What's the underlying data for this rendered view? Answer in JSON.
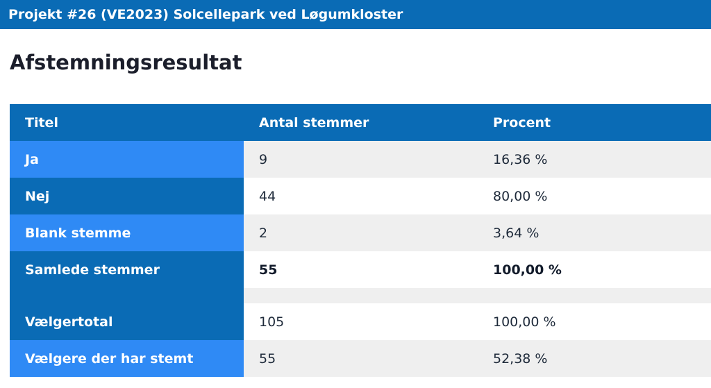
{
  "header": {
    "title": "Projekt #26 (VE2023) Solcellepark ved Løgumkloster"
  },
  "page": {
    "heading": "Afstemningsresultat"
  },
  "table": {
    "columns": [
      "Titel",
      "Antal stemmer",
      "Procent"
    ],
    "rows": [
      {
        "title": "Ja",
        "votes": "9",
        "percent": "16,36 %"
      },
      {
        "title": "Nej",
        "votes": "44",
        "percent": "80,00 %"
      },
      {
        "title": "Blank stemme",
        "votes": "2",
        "percent": "3,64 %"
      },
      {
        "title": "Samlede stemmer",
        "votes": "55",
        "percent": "100,00 %"
      },
      {
        "title": "Vælgertotal",
        "votes": "105",
        "percent": "100,00 %"
      },
      {
        "title": "Vælgere der har stemt",
        "votes": "55",
        "percent": "52,38 %"
      }
    ]
  },
  "colors": {
    "header_blue": "#0a6bb5",
    "light_blue": "#2f8af5",
    "row_gray": "#efefef"
  }
}
